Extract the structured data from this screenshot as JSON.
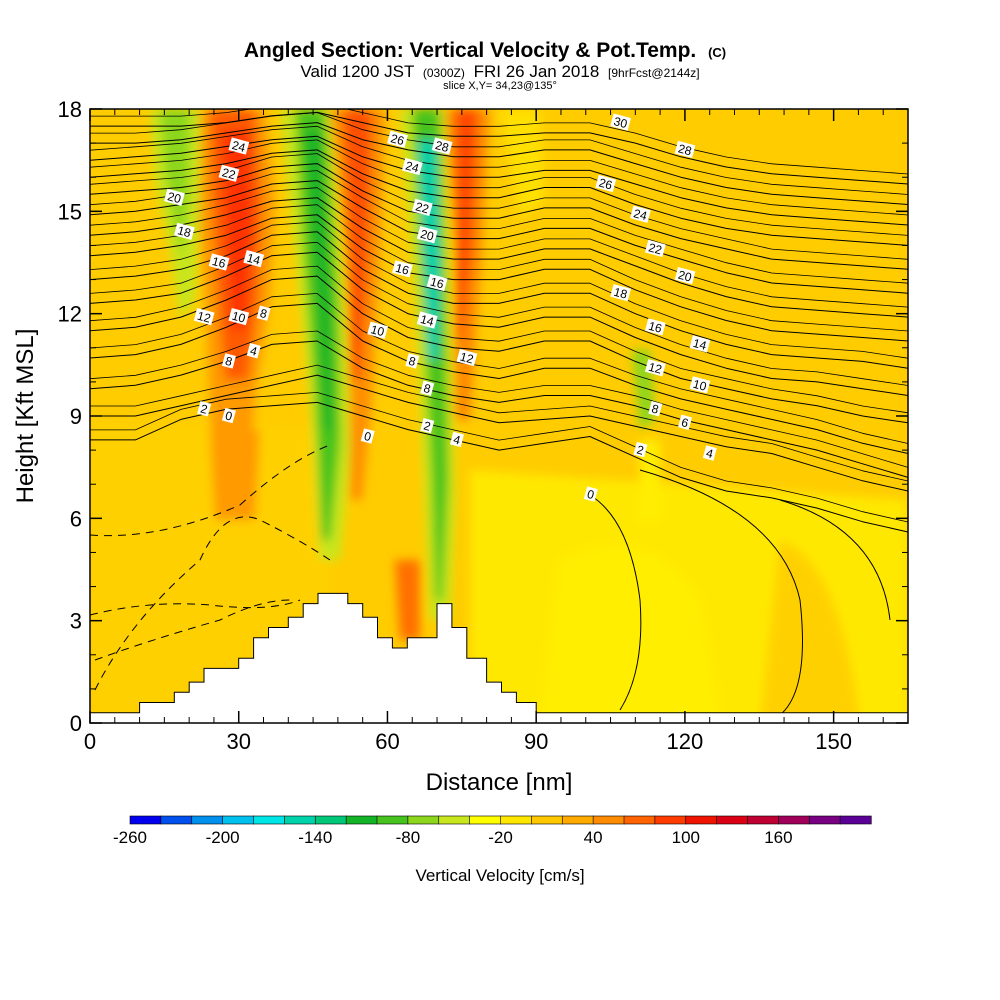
{
  "chart_data": {
    "type": "heatmap",
    "title": "Angled Section: Vertical Velocity & Pot.Temp.",
    "title_units": "(C)",
    "subtitle_parts": [
      "Valid 1200 JST",
      "(0300Z)",
      "FRI 26 Jan 2018",
      "[9hrFcst@2144z]"
    ],
    "subtitle2": "slice X,Y= 34,23@135°",
    "xlabel": "Distance [nm]",
    "ylabel": "Height [Kft MSL]",
    "xlim": [
      0,
      165
    ],
    "ylim": [
      0,
      18
    ],
    "xticks": [
      0,
      30,
      60,
      90,
      120,
      150
    ],
    "yticks": [
      0,
      3,
      6,
      9,
      12,
      15,
      18
    ],
    "colorbar": {
      "label": "Vertical Velocity [cm/s]",
      "tick_labels": [
        "-260",
        "-200",
        "-140",
        "-80",
        "-20",
        "40",
        "100",
        "160"
      ],
      "colors": [
        "#0000ee",
        "#0050ee",
        "#0090ee",
        "#00c0ee",
        "#00e6e6",
        "#00d2aa",
        "#00c878",
        "#14b428",
        "#46c31e",
        "#8cd71e",
        "#c8e61e",
        "#ffff00",
        "#ffe600",
        "#ffc800",
        "#ffaa00",
        "#ff8c00",
        "#ff6400",
        "#ff3c00",
        "#ee1400",
        "#dc0014",
        "#be0032",
        "#a0005a",
        "#780082",
        "#5a0096"
      ]
    },
    "theta_contours": [
      {
        "value": 0,
        "y": [
          8.3,
          8.3,
          8.9,
          9.2,
          9.3,
          9.4,
          9.0,
          8.6,
          8.3,
          8.0,
          8.2,
          8.4,
          7.8,
          7.2,
          6.8,
          6.6,
          6.3,
          5.9,
          5.6
        ]
      },
      {
        "value": 2,
        "y": [
          9.0,
          9.0,
          9.3,
          9.6,
          9.9,
          10.2,
          9.8,
          9.4,
          9.1,
          8.8,
          8.9,
          9.0,
          8.7,
          8.4,
          8.1,
          7.9,
          7.5,
          7.1,
          6.8
        ]
      },
      {
        "value": 4,
        "y": [
          9.8,
          9.9,
          10.2,
          10.6,
          11.1,
          11.2,
          10.4,
          9.9,
          9.6,
          9.4,
          9.6,
          9.6,
          9.3,
          8.9,
          8.6,
          8.3,
          8.0,
          7.6,
          7.2
        ]
      },
      {
        "value": 6,
        "y": [
          10.7,
          10.8,
          11.1,
          11.6,
          12.2,
          12.3,
          11.2,
          10.6,
          10.3,
          10.1,
          10.4,
          10.4,
          9.9,
          9.5,
          9.2,
          8.9,
          8.6,
          8.2,
          7.9
        ]
      },
      {
        "value": 8,
        "y": [
          11.5,
          11.6,
          11.9,
          12.4,
          13.0,
          13.1,
          12.0,
          11.3,
          11.0,
          10.9,
          11.2,
          11.2,
          10.6,
          10.1,
          9.8,
          9.5,
          9.3,
          9.0,
          8.8
        ]
      },
      {
        "value": 10,
        "y": [
          12.3,
          12.4,
          12.6,
          13.1,
          13.7,
          13.8,
          12.7,
          12.0,
          11.7,
          11.6,
          11.9,
          11.9,
          11.3,
          10.8,
          10.4,
          10.1,
          10.0,
          9.8,
          9.6
        ]
      },
      {
        "value": 12,
        "y": [
          13.0,
          13.1,
          13.3,
          13.7,
          14.3,
          14.4,
          13.3,
          12.6,
          12.3,
          12.3,
          12.6,
          12.6,
          12.0,
          11.5,
          11.1,
          10.8,
          10.7,
          10.6,
          10.4
        ]
      },
      {
        "value": 14,
        "y": [
          13.7,
          13.8,
          14.0,
          14.3,
          14.8,
          14.9,
          13.9,
          13.2,
          13.0,
          13.0,
          13.3,
          13.3,
          12.7,
          12.2,
          11.8,
          11.5,
          11.4,
          11.3,
          11.2
        ]
      },
      {
        "value": 16,
        "y": [
          14.3,
          14.4,
          14.6,
          14.9,
          15.3,
          15.4,
          14.5,
          13.8,
          13.6,
          13.6,
          13.9,
          13.9,
          13.4,
          12.9,
          12.5,
          12.2,
          12.1,
          12.0,
          11.9
        ]
      },
      {
        "value": 18,
        "y": [
          14.9,
          15.0,
          15.2,
          15.4,
          15.8,
          15.9,
          15.1,
          14.4,
          14.2,
          14.2,
          14.5,
          14.5,
          14.0,
          13.6,
          13.2,
          12.9,
          12.8,
          12.7,
          12.6
        ]
      },
      {
        "value": 20,
        "y": [
          15.5,
          15.6,
          15.7,
          15.9,
          16.3,
          16.4,
          15.6,
          15.0,
          14.8,
          14.8,
          15.1,
          15.1,
          14.6,
          14.2,
          13.9,
          13.6,
          13.5,
          13.4,
          13.3
        ]
      },
      {
        "value": 22,
        "y": [
          16.0,
          16.1,
          16.2,
          16.4,
          16.7,
          16.8,
          16.1,
          15.6,
          15.4,
          15.4,
          15.7,
          15.7,
          15.2,
          14.8,
          14.5,
          14.3,
          14.2,
          14.1,
          14.0
        ]
      },
      {
        "value": 24,
        "y": [
          16.5,
          16.6,
          16.7,
          16.9,
          17.1,
          17.2,
          16.6,
          16.2,
          16.0,
          16.0,
          16.2,
          16.2,
          15.8,
          15.4,
          15.1,
          14.9,
          14.8,
          14.7,
          14.6
        ]
      },
      {
        "value": 26,
        "y": [
          17.0,
          17.0,
          17.1,
          17.3,
          17.5,
          17.6,
          17.1,
          16.8,
          16.6,
          16.6,
          16.8,
          16.8,
          16.4,
          16.0,
          15.7,
          15.5,
          15.4,
          15.3,
          15.2
        ]
      },
      {
        "value": 28,
        "y": [
          17.5,
          17.5,
          17.5,
          17.6,
          17.8,
          17.9,
          17.6,
          17.3,
          17.2,
          17.2,
          17.3,
          17.3,
          17.0,
          16.6,
          16.3,
          16.1,
          16.0,
          15.9,
          15.8
        ]
      }
    ],
    "contour_labels": [
      {
        "text": "24",
        "x": 30,
        "y": 16.9
      },
      {
        "text": "22",
        "x": 28,
        "y": 16.1
      },
      {
        "text": "20",
        "x": 17,
        "y": 15.4
      },
      {
        "text": "18",
        "x": 19,
        "y": 14.4
      },
      {
        "text": "16",
        "x": 26,
        "y": 13.5
      },
      {
        "text": "14",
        "x": 33,
        "y": 13.6
      },
      {
        "text": "12",
        "x": 23,
        "y": 11.9
      },
      {
        "text": "10",
        "x": 30,
        "y": 11.9
      },
      {
        "text": "8",
        "x": 35,
        "y": 12.0
      },
      {
        "text": "8",
        "x": 28,
        "y": 10.6
      },
      {
        "text": "4",
        "x": 33,
        "y": 10.9
      },
      {
        "text": "2",
        "x": 23,
        "y": 9.2
      },
      {
        "text": "0",
        "x": 28,
        "y": 9.0
      },
      {
        "text": "26",
        "x": 62,
        "y": 17.1
      },
      {
        "text": "28",
        "x": 71,
        "y": 16.9
      },
      {
        "text": "24",
        "x": 65,
        "y": 16.3
      },
      {
        "text": "22",
        "x": 67,
        "y": 15.1
      },
      {
        "text": "20",
        "x": 68,
        "y": 14.3
      },
      {
        "text": "16",
        "x": 63,
        "y": 13.3
      },
      {
        "text": "16",
        "x": 70,
        "y": 12.9
      },
      {
        "text": "14",
        "x": 68,
        "y": 11.8
      },
      {
        "text": "10",
        "x": 58,
        "y": 11.5
      },
      {
        "text": "12",
        "x": 76,
        "y": 10.7
      },
      {
        "text": "8",
        "x": 65,
        "y": 10.6
      },
      {
        "text": "8",
        "x": 68,
        "y": 9.8
      },
      {
        "text": "2",
        "x": 68,
        "y": 8.7
      },
      {
        "text": "0",
        "x": 56,
        "y": 8.4
      },
      {
        "text": "4",
        "x": 74,
        "y": 8.3
      },
      {
        "text": "30",
        "x": 107,
        "y": 17.6
      },
      {
        "text": "28",
        "x": 120,
        "y": 16.8
      },
      {
        "text": "26",
        "x": 104,
        "y": 15.8
      },
      {
        "text": "24",
        "x": 111,
        "y": 14.9
      },
      {
        "text": "22",
        "x": 114,
        "y": 13.9
      },
      {
        "text": "20",
        "x": 120,
        "y": 13.1
      },
      {
        "text": "18",
        "x": 107,
        "y": 12.6
      },
      {
        "text": "16",
        "x": 114,
        "y": 11.6
      },
      {
        "text": "14",
        "x": 123,
        "y": 11.1
      },
      {
        "text": "12",
        "x": 114,
        "y": 10.4
      },
      {
        "text": "10",
        "x": 123,
        "y": 9.9
      },
      {
        "text": "8",
        "x": 114,
        "y": 9.2
      },
      {
        "text": "6",
        "x": 120,
        "y": 8.8
      },
      {
        "text": "2",
        "x": 111,
        "y": 8.0
      },
      {
        "text": "4",
        "x": 125,
        "y": 7.9
      },
      {
        "text": "0",
        "x": 101,
        "y": 6.7
      }
    ],
    "terrain": {
      "x": [
        0,
        10,
        10,
        17,
        17,
        20,
        20,
        23,
        23,
        30,
        30,
        33,
        33,
        36,
        36,
        40,
        40,
        43,
        43,
        46,
        46,
        52,
        52,
        55,
        55,
        58,
        58,
        61,
        61,
        64,
        64,
        70,
        70,
        73,
        73,
        76,
        76,
        80,
        80,
        83,
        83,
        86,
        86,
        90,
        90,
        165
      ],
      "y": [
        0.3,
        0.3,
        0.6,
        0.6,
        0.9,
        0.9,
        1.2,
        1.2,
        1.6,
        1.6,
        1.9,
        1.9,
        2.5,
        2.5,
        2.8,
        2.8,
        3.1,
        3.1,
        3.5,
        3.5,
        3.8,
        3.8,
        3.5,
        3.5,
        3.1,
        3.1,
        2.5,
        2.5,
        2.2,
        2.2,
        2.5,
        2.5,
        3.5,
        3.5,
        2.8,
        2.8,
        1.9,
        1.9,
        1.2,
        1.2,
        0.9,
        0.9,
        0.6,
        0.6,
        0.3,
        0.3
      ]
    }
  }
}
